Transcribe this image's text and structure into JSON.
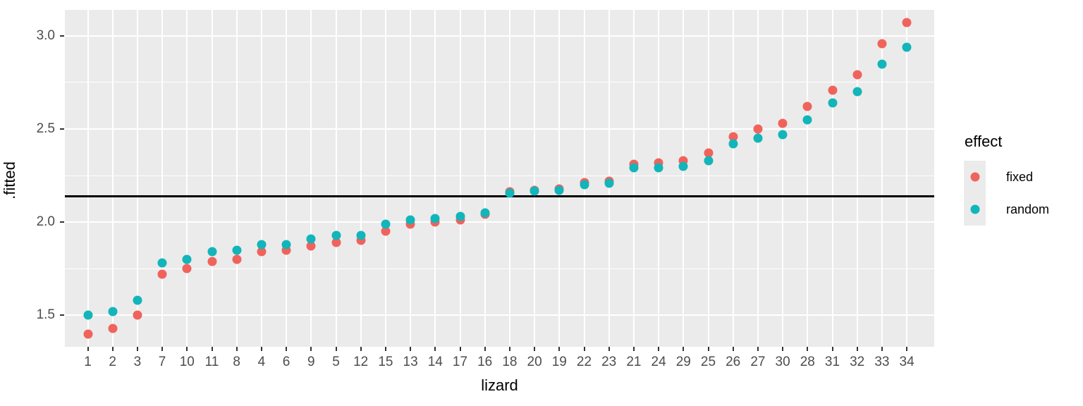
{
  "chart_data": {
    "type": "scatter",
    "title": "",
    "xlabel": "lizard",
    "ylabel": ".fitted",
    "x_categories": [
      "1",
      "2",
      "3",
      "7",
      "10",
      "11",
      "8",
      "4",
      "6",
      "9",
      "5",
      "12",
      "15",
      "13",
      "14",
      "17",
      "16",
      "18",
      "20",
      "19",
      "22",
      "23",
      "21",
      "24",
      "29",
      "25",
      "26",
      "27",
      "30",
      "28",
      "31",
      "32",
      "33",
      "34"
    ],
    "series": [
      {
        "name": "fixed",
        "color": "#F0635C",
        "values": [
          1.4,
          1.43,
          1.5,
          1.72,
          1.75,
          1.79,
          1.8,
          1.84,
          1.85,
          1.87,
          1.89,
          1.9,
          1.95,
          1.99,
          2.0,
          2.01,
          2.04,
          2.163,
          2.172,
          2.177,
          2.212,
          2.218,
          2.31,
          2.32,
          2.33,
          2.37,
          2.46,
          2.5,
          2.53,
          2.62,
          2.71,
          2.79,
          2.96,
          3.07
        ]
      },
      {
        "name": "random",
        "color": "#12B5B9",
        "values": [
          1.5,
          1.52,
          1.58,
          1.78,
          1.8,
          1.84,
          1.85,
          1.88,
          1.88,
          1.91,
          1.93,
          1.93,
          1.99,
          2.01,
          2.02,
          2.03,
          2.05,
          2.156,
          2.166,
          2.17,
          2.201,
          2.207,
          2.29,
          2.29,
          2.3,
          2.33,
          2.42,
          2.45,
          2.47,
          2.55,
          2.64,
          2.7,
          2.85,
          2.94
        ]
      }
    ],
    "hline": 2.14,
    "ylim": [
      1.33,
      3.14
    ],
    "yticks": [
      1.5,
      2.0,
      2.5,
      3.0
    ],
    "ytick_labels": [
      "1.5",
      "2.0",
      "2.5",
      "3.0"
    ],
    "minor_yticks": [
      1.75,
      2.25,
      2.75
    ],
    "grid": true,
    "legend_position": "right",
    "panel_bg": "#EBEBEB",
    "gridline_color": "#FFFFFF"
  },
  "legend": {
    "title": "effect",
    "entries": [
      {
        "label": "fixed",
        "color": "#F0635C"
      },
      {
        "label": "random",
        "color": "#12B5B9"
      }
    ]
  },
  "axes": {
    "x_title": "lizard",
    "y_title": ".fitted"
  }
}
